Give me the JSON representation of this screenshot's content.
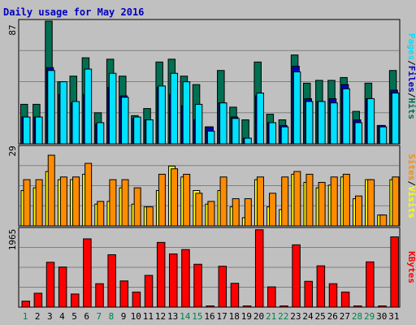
{
  "colors": {
    "background": "#c0c0c0",
    "grid": "#808080",
    "hits": "#006f52",
    "files": "#0000c0",
    "pages": "#00e0ff",
    "visits": "#ffff00",
    "sites": "#ff8c00",
    "kbytes": "#ff0000",
    "title": "#0000c0",
    "weekend_day": "#00804b",
    "weekday_day": "#000000",
    "slash": "#000000"
  },
  "chart_data": [
    {
      "type": "bar",
      "title": "Daily usage for May 2016",
      "panel": "hits-files-pages",
      "x": [
        "1",
        "2",
        "3",
        "4",
        "5",
        "6",
        "7",
        "8",
        "9",
        "10",
        "11",
        "12",
        "13",
        "14",
        "15",
        "16",
        "17",
        "18",
        "19",
        "20",
        "21",
        "22",
        "23",
        "24",
        "25",
        "26",
        "27",
        "28",
        "29",
        "30",
        "31"
      ],
      "weekend_days": [
        "1",
        "7",
        "8",
        "14",
        "15",
        "21",
        "22",
        "28",
        "29"
      ],
      "ylim": [
        0,
        87
      ],
      "ytick": "87",
      "series": [
        {
          "name": "Hits",
          "values": [
            28,
            28,
            87,
            44,
            48,
            61,
            22,
            60,
            48,
            20,
            25,
            58,
            60,
            48,
            42,
            12,
            52,
            26,
            17,
            58,
            21,
            17,
            63,
            43,
            45,
            45,
            47,
            23,
            43,
            13,
            52
          ]
        },
        {
          "name": "Files",
          "values": [
            19,
            19,
            54,
            35,
            29,
            35,
            14,
            40,
            34,
            18,
            17,
            40,
            35,
            27,
            17,
            12,
            29,
            19,
            4,
            34,
            15,
            13,
            55,
            32,
            30,
            32,
            42,
            17,
            32,
            13,
            38
          ]
        },
        {
          "name": "Pages",
          "values": [
            19,
            19,
            52,
            44,
            30,
            53,
            15,
            50,
            33,
            19,
            17,
            41,
            50,
            44,
            28,
            9,
            29,
            18,
            4,
            36,
            15,
            12,
            51,
            30,
            30,
            29,
            39,
            15,
            32,
            12,
            36
          ]
        }
      ]
    },
    {
      "type": "bar",
      "panel": "visits-sites",
      "x": [
        "1",
        "2",
        "3",
        "4",
        "5",
        "6",
        "7",
        "8",
        "9",
        "10",
        "11",
        "12",
        "13",
        "14",
        "15",
        "16",
        "17",
        "18",
        "19",
        "20",
        "21",
        "22",
        "23",
        "24",
        "25",
        "26",
        "27",
        "28",
        "29",
        "30",
        "31"
      ],
      "ylim": [
        0,
        29
      ],
      "ytick": "29",
      "series": [
        {
          "name": "Visits",
          "values": [
            13,
            14,
            20,
            17,
            17,
            19,
            8,
            9,
            14,
            8,
            7,
            13,
            22,
            18,
            13,
            8,
            13,
            7,
            3,
            17,
            7,
            6,
            19,
            16,
            14,
            15,
            18,
            10,
            17,
            4,
            17
          ]
        },
        {
          "name": "Sites",
          "values": [
            17,
            17,
            26,
            18,
            18,
            23,
            9,
            17,
            17,
            14,
            7,
            19,
            21,
            19,
            12,
            9,
            18,
            10,
            10,
            18,
            12,
            18,
            20,
            19,
            16,
            18,
            19,
            11,
            17,
            4,
            18
          ]
        }
      ]
    },
    {
      "type": "bar",
      "panel": "kbytes",
      "x": [
        "1",
        "2",
        "3",
        "4",
        "5",
        "6",
        "7",
        "8",
        "9",
        "10",
        "11",
        "12",
        "13",
        "14",
        "15",
        "16",
        "17",
        "18",
        "19",
        "20",
        "21",
        "22",
        "23",
        "24",
        "25",
        "26",
        "27",
        "28",
        "29",
        "30",
        "31"
      ],
      "ylim": [
        0,
        1965
      ],
      "ytick": "1965",
      "series": [
        {
          "name": "KBytes",
          "values": [
            150,
            350,
            1130,
            1010,
            330,
            1720,
            590,
            1320,
            660,
            380,
            800,
            1630,
            1340,
            1450,
            1080,
            30,
            1030,
            600,
            30,
            1950,
            510,
            30,
            1570,
            650,
            1040,
            590,
            380,
            30,
            1140,
            30,
            1770
          ]
        }
      ]
    }
  ],
  "side_labels": {
    "top": {
      "pages": "Pages",
      "slash1": "/",
      "files": "Files",
      "slash2": "/",
      "hits": "Hits"
    },
    "middle": {
      "sites": "Sites",
      "slash": "/",
      "visits": "Visits"
    },
    "bottom": {
      "kbytes": "KBytes"
    }
  }
}
